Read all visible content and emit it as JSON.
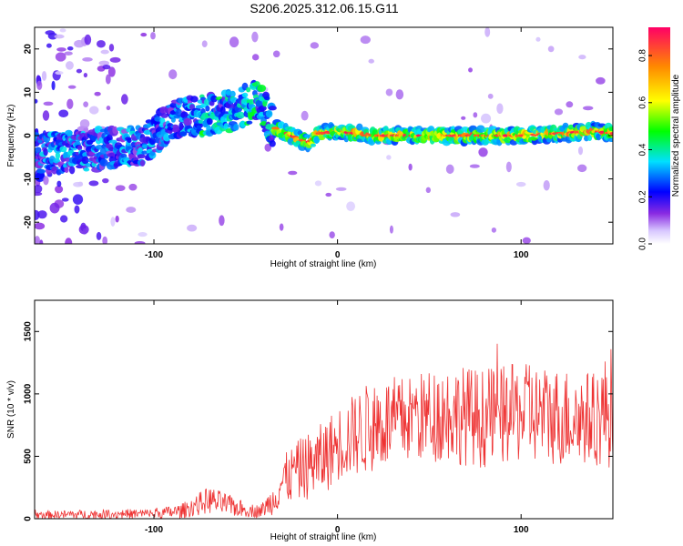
{
  "figure_title": "S206.2025.312.06.15.G11",
  "chart_data": [
    {
      "type": "heatmap",
      "name": "spectrogram",
      "xlabel": "Height of straight line (km)",
      "ylabel": "Frequency (Hz)",
      "xlim": [
        -165,
        150
      ],
      "ylim": [
        -25,
        25
      ],
      "xticks": [
        "-100",
        "0",
        "100"
      ],
      "xtick_values": [
        -100,
        0,
        100
      ],
      "yticks": [
        "20",
        "10",
        "0",
        "-10",
        "-20"
      ],
      "ytick_values": [
        20,
        10,
        0,
        -10,
        -20
      ],
      "colorbar": {
        "label": "Normalized spectral amplitude",
        "range": [
          0.0,
          0.92
        ],
        "ticks": [
          "0.0",
          "0.2",
          "0.4",
          "0.6",
          "0.8"
        ],
        "tick_values": [
          0.0,
          0.2,
          0.4,
          0.6,
          0.8
        ]
      },
      "ridge": {
        "x": [
          -165,
          -150,
          -130,
          -115,
          -105,
          -95,
          -85,
          -75,
          -65,
          -55,
          -45,
          -40,
          -35,
          -30,
          -25,
          -20,
          -15,
          -10,
          0,
          20,
          40,
          60,
          80,
          100,
          120,
          140,
          150
        ],
        "y": [
          -4,
          -4,
          -3,
          -2.5,
          -2,
          2,
          4,
          4.5,
          5,
          6,
          8,
          6,
          2,
          1,
          0,
          -1,
          -1.5,
          0.5,
          1,
          0,
          0,
          0,
          0,
          0,
          0.5,
          1,
          0.5
        ]
      }
    },
    {
      "type": "line",
      "name": "snr",
      "xlabel": "Height of straight line (km)",
      "ylabel": "SNR (10 * v/v)",
      "xlim": [
        -165,
        150
      ],
      "ylim": [
        0,
        1750
      ],
      "xticks": [
        "-100",
        "0",
        "100"
      ],
      "xtick_values": [
        -100,
        0,
        100
      ],
      "yticks": [
        "0",
        "500",
        "1000",
        "1500"
      ],
      "ytick_values": [
        0,
        500,
        1000,
        1500
      ],
      "color": "#ee3333",
      "envelope": {
        "x": [
          -165,
          -130,
          -100,
          -85,
          -70,
          -60,
          -50,
          -42,
          -35,
          -30,
          -20,
          -10,
          0,
          20,
          40,
          60,
          80,
          100,
          120,
          140,
          150
        ],
        "mean": [
          30,
          35,
          40,
          60,
          150,
          110,
          70,
          60,
          150,
          300,
          400,
          450,
          600,
          750,
          800,
          850,
          800,
          850,
          820,
          800,
          900
        ],
        "spread": [
          30,
          40,
          40,
          60,
          110,
          90,
          60,
          50,
          120,
          200,
          250,
          300,
          300,
          380,
          350,
          400,
          400,
          400,
          400,
          380,
          500
        ]
      }
    }
  ]
}
